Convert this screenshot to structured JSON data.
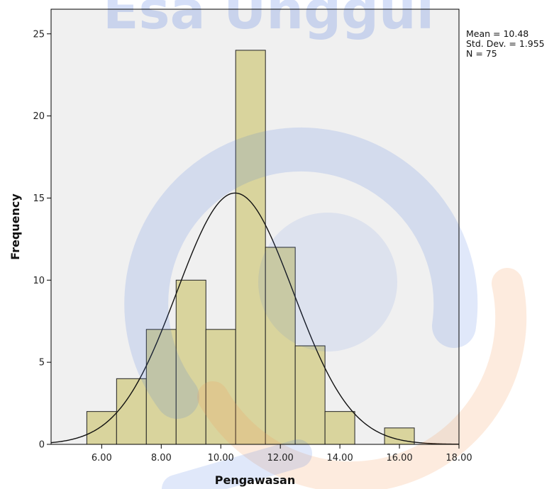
{
  "chart_data": {
    "type": "bar",
    "title": "",
    "xlabel": "Pengawasan",
    "ylabel": "Frequency",
    "xlim": [
      4.3,
      18.0
    ],
    "ylim": [
      0,
      26.5
    ],
    "x_ticks": [
      6.0,
      8.0,
      10.0,
      12.0,
      14.0,
      16.0,
      18.0
    ],
    "x_tick_labels": [
      "6.00",
      "8.00",
      "10.00",
      "12.00",
      "14.00",
      "16.00",
      "18.00"
    ],
    "y_ticks": [
      0,
      5,
      10,
      15,
      20,
      25
    ],
    "y_tick_labels": [
      "0",
      "5",
      "10",
      "15",
      "20",
      "25"
    ],
    "bins": [
      {
        "x0": 5.5,
        "x1": 6.5,
        "count": 2
      },
      {
        "x0": 6.5,
        "x1": 7.5,
        "count": 4
      },
      {
        "x0": 7.5,
        "x1": 8.5,
        "count": 7
      },
      {
        "x0": 8.5,
        "x1": 9.5,
        "count": 10
      },
      {
        "x0": 9.5,
        "x1": 10.5,
        "count": 7
      },
      {
        "x0": 10.5,
        "x1": 11.5,
        "count": 24
      },
      {
        "x0": 11.5,
        "x1": 12.5,
        "count": 12
      },
      {
        "x0": 12.5,
        "x1": 13.5,
        "count": 6
      },
      {
        "x0": 13.5,
        "x1": 14.5,
        "count": 2
      },
      {
        "x0": 14.5,
        "x1": 15.5,
        "count": 0
      },
      {
        "x0": 15.5,
        "x1": 16.5,
        "count": 1
      }
    ],
    "normal_curve": {
      "mean": 10.48,
      "std_dev": 1.955,
      "n": 75,
      "bin_width": 1.0
    },
    "stats_lines": [
      "Mean = 10.48",
      "Std. Dev. = 1.955",
      "N = 75"
    ],
    "grid": false,
    "bar_color": "#d9d49d",
    "bar_edge_color": "#222222",
    "plot_background": "#f0f0f0",
    "curve_color": "#111111"
  },
  "watermark": {
    "text": "Esa Unggul",
    "text_color": "#3f6fe0",
    "ring_blue": "#3f6fe0",
    "ring_orange": "#f39a5a"
  }
}
